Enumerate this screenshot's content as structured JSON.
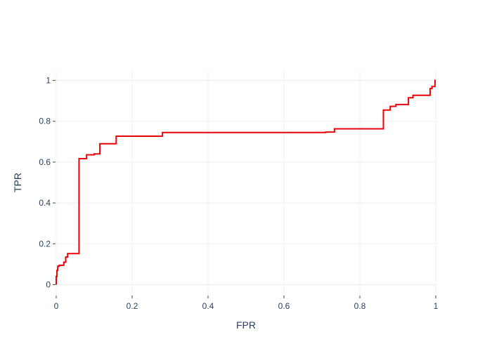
{
  "chart_data": {
    "type": "line",
    "title": "",
    "xlabel": "FPR",
    "ylabel": "TPR",
    "xlim": [
      0,
      1
    ],
    "ylim": [
      -0.05,
      1.05
    ],
    "grid": true,
    "legend": "none",
    "x_ticks": [
      {
        "value": 0,
        "label": "0"
      },
      {
        "value": 0.2,
        "label": "0.2"
      },
      {
        "value": 0.4,
        "label": "0.4"
      },
      {
        "value": 0.6,
        "label": "0.6"
      },
      {
        "value": 0.8,
        "label": "0.8"
      },
      {
        "value": 1,
        "label": "1"
      }
    ],
    "y_ticks": [
      {
        "value": 0,
        "label": "0"
      },
      {
        "value": 0.2,
        "label": "0.2"
      },
      {
        "value": 0.4,
        "label": "0.4"
      },
      {
        "value": 0.6,
        "label": "0.6"
      },
      {
        "value": 0.8,
        "label": "0.8"
      },
      {
        "value": 1,
        "label": "1"
      }
    ],
    "series": [
      {
        "color": "#e8000b",
        "x": [
          0,
          0,
          0.002,
          0.002,
          0.004,
          0.004,
          0.008,
          0.008,
          0.02,
          0.02,
          0.025,
          0.025,
          0.03,
          0.03,
          0.06,
          0.06,
          0.08,
          0.08,
          0.1,
          0.1,
          0.115,
          0.115,
          0.158,
          0.158,
          0.28,
          0.28,
          0.71,
          0.71,
          0.733,
          0.733,
          0.862,
          0.862,
          0.88,
          0.88,
          0.895,
          0.895,
          0.928,
          0.928,
          0.94,
          0.94,
          0.985,
          0.985,
          0.99,
          0.99,
          0.998,
          0.998,
          1
        ],
        "y": [
          0,
          0.04,
          0.04,
          0.07,
          0.07,
          0.09,
          0.09,
          0.095,
          0.095,
          0.11,
          0.11,
          0.135,
          0.135,
          0.152,
          0.152,
          0.617,
          0.617,
          0.636,
          0.636,
          0.64,
          0.64,
          0.69,
          0.69,
          0.727,
          0.727,
          0.745,
          0.745,
          0.747,
          0.747,
          0.763,
          0.763,
          0.855,
          0.855,
          0.873,
          0.873,
          0.882,
          0.882,
          0.915,
          0.915,
          0.927,
          0.927,
          0.96,
          0.96,
          0.97,
          0.97,
          1.0,
          1.0
        ]
      }
    ]
  }
}
